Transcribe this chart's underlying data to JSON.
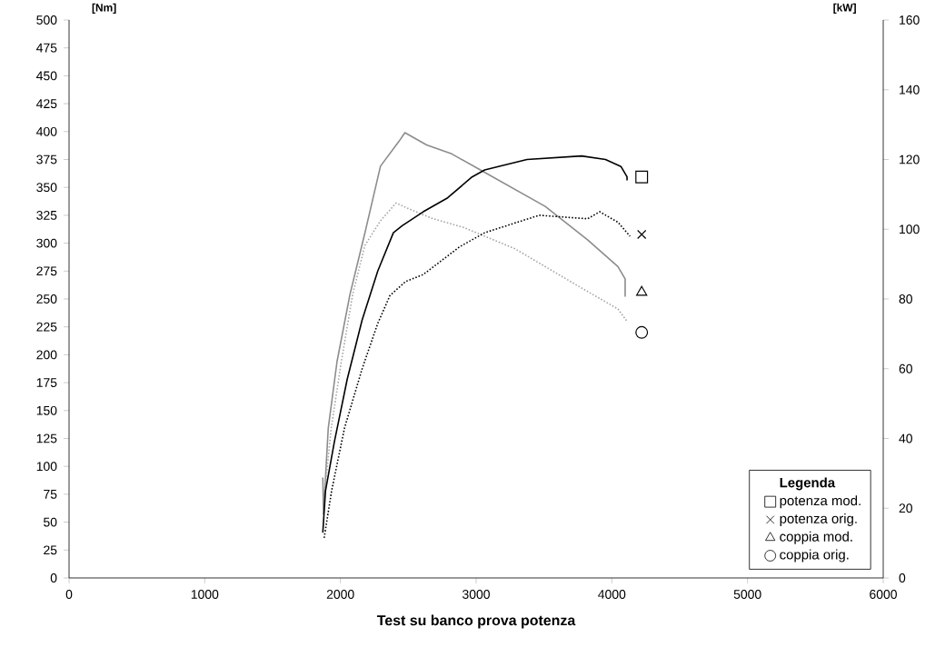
{
  "chart_data": {
    "type": "line",
    "title": "Test su banco prova potenza",
    "ylabel": "[Nm]",
    "y2label": "[kW]",
    "legend_title": "Legenda",
    "legend": "bottom right",
    "grid": false,
    "xlim": [
      0,
      6000
    ],
    "xticks": [
      0,
      1000,
      2000,
      3000,
      4000,
      5000,
      6000
    ],
    "ylim": [
      0,
      500
    ],
    "yticks": [
      0,
      25,
      50,
      75,
      100,
      125,
      150,
      175,
      200,
      225,
      250,
      275,
      300,
      325,
      350,
      375,
      400,
      425,
      450,
      475,
      500
    ],
    "y2lim": [
      0,
      160
    ],
    "y2ticks": [
      0,
      20,
      40,
      60,
      80,
      100,
      120,
      140,
      160
    ],
    "series": [
      {
        "axis": "y2",
        "color": "#000000",
        "line_style": "solid",
        "x": [
          1870,
          1890,
          1955,
          2050,
          2160,
          2275,
          2390,
          2455,
          2610,
          2790,
          2970,
          3063,
          3375,
          3777,
          3953,
          4067,
          4112,
          4112
        ],
        "values": [
          13,
          25,
          39,
          57,
          74,
          88,
          99,
          101,
          105,
          109,
          115,
          117,
          120,
          121,
          120,
          118,
          115,
          114
        ]
      },
      {
        "axis": "y2",
        "color": "#000000",
        "line_style": "dotted",
        "x": [
          1880,
          1935,
          2030,
          2160,
          2275,
          2365,
          2480,
          2610,
          2745,
          2880,
          3063,
          3464,
          3821,
          3911,
          4045,
          4134
        ],
        "values": [
          11.5,
          25,
          43,
          60,
          73,
          81,
          85,
          87,
          91,
          95,
          99,
          104,
          103,
          105,
          102,
          98
        ]
      },
      {
        "color": "#8c8c8c",
        "line_style": "solid",
        "x": [
          1870,
          1875,
          1910,
          1975,
          2070,
          2180,
          2295,
          2430,
          2475,
          2635,
          2820,
          3025,
          3509,
          3821,
          4045,
          4098,
          4098
        ],
        "values": [
          90,
          57,
          134,
          194,
          254,
          309,
          369,
          391,
          399,
          388,
          380,
          366,
          333,
          303,
          279,
          268,
          252
        ]
      },
      {
        "color": "#a6a6a6",
        "line_style": "dotted",
        "x": [
          1886,
          1932,
          2000,
          2090,
          2180,
          2295,
          2410,
          2500,
          2680,
          2910,
          3286,
          3732,
          4045,
          4112
        ],
        "values": [
          79,
          134,
          189,
          254,
          298,
          320,
          336,
          331,
          322,
          314,
          295,
          263,
          241,
          230
        ]
      },
      {
        "type": "scatter",
        "name": "potenza mod.",
        "axis": "y2",
        "marker": "square",
        "color": "#000000",
        "x": [
          4220
        ],
        "values": [
          115
        ]
      },
      {
        "type": "scatter",
        "name": "potenza orig.",
        "axis": "y2",
        "marker": "cross",
        "color": "#000000",
        "x": [
          4220
        ],
        "values": [
          98.5
        ]
      },
      {
        "type": "scatter",
        "name": "coppia mod.",
        "marker": "triangle",
        "color": "#000000",
        "x": [
          4220
        ],
        "values": [
          256
        ]
      },
      {
        "type": "scatter",
        "name": "coppia orig.",
        "marker": "circle",
        "color": "#000000",
        "x": [
          4220
        ],
        "values": [
          220
        ]
      }
    ]
  }
}
